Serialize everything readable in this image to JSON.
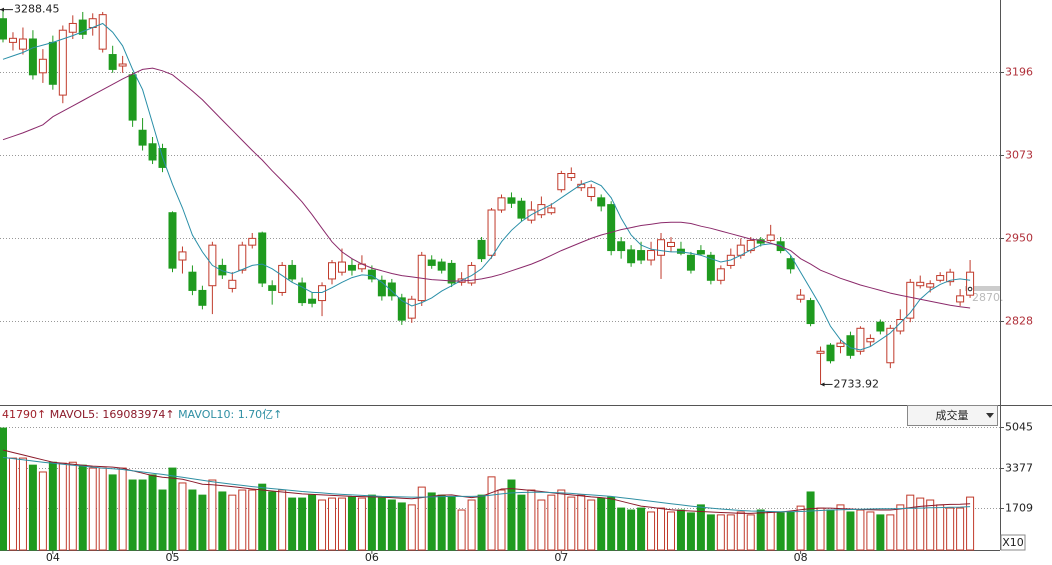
{
  "chart_data": [
    {
      "type": "candlestick",
      "categories": [
        null,
        null,
        null,
        null,
        null,
        "04",
        null,
        null,
        null,
        null,
        null,
        null,
        null,
        null,
        null,
        null,
        null,
        "05",
        null,
        null,
        null,
        null,
        null,
        null,
        null,
        null,
        null,
        null,
        null,
        null,
        null,
        null,
        null,
        null,
        null,
        null,
        null,
        "06",
        null,
        null,
        null,
        null,
        null,
        null,
        null,
        null,
        null,
        null,
        null,
        null,
        null,
        null,
        null,
        null,
        null,
        null,
        "07",
        null,
        null,
        null,
        null,
        null,
        null,
        null,
        null,
        null,
        null,
        null,
        null,
        null,
        null,
        null,
        null,
        null,
        null,
        null,
        null,
        null,
        null,
        null,
        "08",
        null,
        null,
        null,
        null,
        null,
        null,
        null,
        null,
        null,
        null,
        null,
        null,
        null,
        null,
        null,
        null,
        null
      ],
      "open": [
        3275,
        3240,
        3230,
        3245,
        3195,
        3240,
        3162,
        3255,
        3273,
        3262,
        3230,
        3222,
        3205,
        3192,
        3110,
        3090,
        3083,
        2988,
        2918,
        2900,
        2873,
        2880,
        2910,
        2876,
        2903,
        2940,
        2958,
        2880,
        2870,
        2910,
        2884,
        2860,
        2858,
        2890,
        2900,
        2910,
        2905,
        2903,
        2888,
        2884,
        2862,
        2832,
        2858,
        2918,
        2915,
        2913,
        2885,
        2884,
        2947,
        2925,
        2992,
        3010,
        3005,
        2977,
        2985,
        2988,
        3022,
        3040,
        3025,
        3012,
        3010,
        3000,
        2945,
        2933,
        2932,
        2918,
        2925,
        2938,
        2934,
        2925,
        2932,
        2925,
        2888,
        2910,
        2925,
        2932,
        2948,
        2947,
        2945,
        2920,
        2860,
        2858,
        2780,
        2792,
        2790,
        2806,
        2783,
        2797,
        2826,
        2766,
        2813,
        2832,
        2880,
        2878,
        2888,
        2886,
        2856,
        2866
      ],
      "close": [
        3245,
        3246,
        3245,
        3192,
        3215,
        3178,
        3258,
        3268,
        3252,
        3275,
        3281,
        3200,
        3208,
        3125,
        3088,
        3066,
        3055,
        2906,
        2930,
        2873,
        2851,
        2940,
        2896,
        2888,
        2940,
        2950,
        2884,
        2873,
        2910,
        2890,
        2855,
        2854,
        2880,
        2914,
        2915,
        2903,
        2912,
        2890,
        2865,
        2865,
        2829,
        2860,
        2925,
        2910,
        2903,
        2884,
        2890,
        2910,
        2920,
        2992,
        3010,
        3002,
        2980,
        2992,
        3000,
        2995,
        3046,
        3046,
        3030,
        3025,
        2998,
        2932,
        2932,
        2914,
        2918,
        2932,
        2948,
        2944,
        2928,
        2903,
        2927,
        2888,
        2905,
        2925,
        2940,
        2947,
        2943,
        2955,
        2932,
        2905,
        2866,
        2824,
        2783,
        2769,
        2795,
        2777,
        2817,
        2802,
        2813,
        2817,
        2830,
        2885,
        2885,
        2883,
        2895,
        2900,
        2865,
        2900
      ],
      "high": [
        3288.45,
        3255,
        3262,
        3258,
        3230,
        3250,
        3265,
        3280,
        3285,
        3283,
        3285,
        3235,
        3220,
        3196,
        3128,
        3100,
        3090,
        2990,
        2938,
        2910,
        2880,
        2945,
        2920,
        2900,
        2945,
        2958,
        2960,
        2888,
        2915,
        2918,
        2892,
        2870,
        2885,
        2918,
        2935,
        2920,
        2925,
        2910,
        2895,
        2890,
        2868,
        2865,
        2930,
        2925,
        2920,
        2918,
        2900,
        2915,
        2952,
        2995,
        3015,
        3018,
        3010,
        3005,
        3012,
        3002,
        3050,
        3055,
        3036,
        3030,
        3015,
        3005,
        2952,
        2940,
        2945,
        2945,
        2958,
        2952,
        2945,
        2930,
        2940,
        2930,
        2910,
        2935,
        2950,
        2952,
        2952,
        2970,
        2952,
        2925,
        2875,
        2862,
        2790,
        2795,
        2800,
        2812,
        2820,
        2808,
        2830,
        2822,
        2845,
        2890,
        2895,
        2888,
        2900,
        2905,
        2875,
        2918
      ],
      "low": [
        3240,
        3228,
        3222,
        3185,
        3180,
        3170,
        3150,
        3245,
        3245,
        3250,
        3225,
        3195,
        3195,
        3115,
        3080,
        3060,
        3048,
        2900,
        2898,
        2866,
        2845,
        2838,
        2890,
        2870,
        2898,
        2935,
        2878,
        2852,
        2865,
        2886,
        2850,
        2848,
        2835,
        2882,
        2895,
        2895,
        2900,
        2885,
        2858,
        2858,
        2822,
        2825,
        2850,
        2905,
        2898,
        2878,
        2880,
        2880,
        2915,
        2920,
        2988,
        2995,
        2975,
        2972,
        2980,
        2985,
        3018,
        3035,
        3020,
        3005,
        2990,
        2925,
        2920,
        2908,
        2912,
        2910,
        2890,
        2930,
        2925,
        2898,
        2925,
        2882,
        2882,
        2905,
        2920,
        2928,
        2938,
        2945,
        2928,
        2898,
        2855,
        2820,
        2733.92,
        2765,
        2780,
        2772,
        2778,
        2790,
        2808,
        2758,
        2808,
        2826,
        2876,
        2870,
        2885,
        2880,
        2850,
        2862
      ],
      "up_color": "#c03a2b",
      "down_color": "#1f9a1f",
      "series": [
        {
          "color": "#2a8fa8",
          "values": [
            3215,
            3220,
            3225,
            3232,
            3236,
            3240,
            3245,
            3250,
            3256,
            3262,
            3268,
            3255,
            3235,
            3200,
            3170,
            3120,
            3070,
            3030,
            2995,
            2955,
            2930,
            2910,
            2902,
            2898,
            2904,
            2910,
            2912,
            2905,
            2895,
            2885,
            2878,
            2870,
            2870,
            2877,
            2885,
            2892,
            2896,
            2895,
            2885,
            2872,
            2858,
            2850,
            2855,
            2862,
            2872,
            2880,
            2888,
            2895,
            2905,
            2922,
            2945,
            2962,
            2975,
            2985,
            2993,
            3000,
            3010,
            3020,
            3030,
            3035,
            3028,
            3010,
            2980,
            2955,
            2940,
            2934,
            2932,
            2930,
            2930,
            2928,
            2925,
            2920,
            2915,
            2918,
            2925,
            2933,
            2940,
            2942,
            2940,
            2925,
            2900,
            2875,
            2850,
            2820,
            2800,
            2788,
            2785,
            2790,
            2800,
            2810,
            2825,
            2840,
            2860,
            2873,
            2882,
            2888,
            2890,
            2888
          ]
        },
        {
          "color": "#8b2a6b",
          "values": [
            3096,
            3101,
            3106,
            3112,
            3118,
            3130,
            3138,
            3146,
            3154,
            3162,
            3170,
            3178,
            3186,
            3193,
            3200,
            3202,
            3198,
            3192,
            3180,
            3168,
            3155,
            3140,
            3125,
            3110,
            3095,
            3080,
            3066,
            3050,
            3035,
            3020,
            3004,
            2985,
            2965,
            2945,
            2930,
            2920,
            2912,
            2906,
            2902,
            2898,
            2895,
            2893,
            2891,
            2889,
            2888,
            2887,
            2887,
            2888,
            2890,
            2893,
            2897,
            2902,
            2907,
            2912,
            2918,
            2925,
            2932,
            2938,
            2944,
            2950,
            2955,
            2959,
            2963,
            2966,
            2969,
            2971,
            2973,
            2974,
            2974,
            2972,
            2968,
            2965,
            2961,
            2957,
            2953,
            2949,
            2947,
            2943,
            2938,
            2932,
            2920,
            2912,
            2903,
            2897,
            2891,
            2886,
            2881,
            2877,
            2873,
            2869,
            2866,
            2863,
            2860,
            2857,
            2854,
            2851,
            2849,
            2847
          ]
        }
      ],
      "ylim": [
        2703.5,
        3302.7
      ],
      "yticks": [
        2828,
        2950,
        3073,
        3196
      ],
      "grid": true,
      "last_label": "2870."
    },
    {
      "type": "bar",
      "header_prefix": "41790↑",
      "values": [
        5000,
        3770,
        3770,
        3480,
        3200,
        3600,
        3560,
        3600,
        3480,
        3360,
        3360,
        3080,
        3360,
        2870,
        2870,
        3080,
        2460,
        3360,
        2750,
        2460,
        2250,
        2870,
        2380,
        2250,
        2460,
        2460,
        2700,
        2380,
        2460,
        2130,
        2130,
        2250,
        2050,
        2130,
        2130,
        2170,
        2130,
        2250,
        2130,
        2050,
        1930,
        1850,
        2580,
        2340,
        2250,
        2170,
        1640,
        2050,
        2250,
        3000,
        2460,
        2870,
        2250,
        2460,
        2050,
        2250,
        2460,
        2170,
        2250,
        2050,
        2130,
        2170,
        1720,
        1640,
        1720,
        1560,
        1720,
        1560,
        1640,
        1520,
        1850,
        1440,
        1440,
        1440,
        1560,
        1440,
        1640,
        1560,
        1520,
        1560,
        1800,
        2380,
        1720,
        1640,
        1850,
        1560,
        1640,
        1560,
        1440,
        1440,
        1850,
        2250,
        2130,
        2050,
        1850,
        1720,
        1720,
        2170
      ],
      "series": [
        {
          "label": "MAVOL5: 169083974↑",
          "color": "#8b1a2a",
          "values": [
            4100,
            4000,
            3900,
            3800,
            3700,
            3600,
            3560,
            3520,
            3480,
            3440,
            3420,
            3400,
            3350,
            3250,
            3150,
            3050,
            2980,
            2950,
            2900,
            2800,
            2700,
            2680,
            2640,
            2600,
            2550,
            2500,
            2460,
            2420,
            2380,
            2340,
            2300,
            2280,
            2260,
            2240,
            2220,
            2200,
            2190,
            2180,
            2170,
            2150,
            2120,
            2100,
            2150,
            2200,
            2250,
            2260,
            2200,
            2150,
            2200,
            2350,
            2500,
            2520,
            2480,
            2440,
            2400,
            2350,
            2300,
            2260,
            2220,
            2180,
            2150,
            2100,
            2000,
            1900,
            1800,
            1750,
            1700,
            1650,
            1620,
            1600,
            1580,
            1560,
            1540,
            1520,
            1500,
            1500,
            1520,
            1540,
            1560,
            1600,
            1650,
            1700,
            1720,
            1720,
            1700,
            1680,
            1660,
            1650,
            1640,
            1640,
            1680,
            1740,
            1790,
            1820,
            1850,
            1870,
            1880,
            1900
          ]
        },
        {
          "label": "MAVOL10: 1.70亿↑",
          "color": "#2f8fa3",
          "values": [
            3800,
            3750,
            3700,
            3650,
            3600,
            3560,
            3520,
            3480,
            3440,
            3400,
            3360,
            3330,
            3300,
            3250,
            3200,
            3150,
            3100,
            3040,
            2980,
            2920,
            2860,
            2800,
            2750,
            2700,
            2650,
            2600,
            2560,
            2520,
            2480,
            2440,
            2400,
            2370,
            2340,
            2310,
            2280,
            2260,
            2240,
            2220,
            2200,
            2190,
            2180,
            2170,
            2170,
            2180,
            2190,
            2200,
            2200,
            2200,
            2210,
            2250,
            2300,
            2340,
            2360,
            2370,
            2370,
            2360,
            2340,
            2320,
            2290,
            2260,
            2230,
            2200,
            2150,
            2100,
            2050,
            2000,
            1950,
            1900,
            1850,
            1800,
            1760,
            1720,
            1680,
            1650,
            1620,
            1600,
            1590,
            1580,
            1570,
            1570,
            1580,
            1600,
            1620,
            1640,
            1650,
            1660,
            1670,
            1680,
            1690,
            1690,
            1700,
            1710,
            1720,
            1730,
            1740,
            1750,
            1760,
            1780
          ]
        }
      ],
      "ylim": [
        0,
        5045
      ],
      "yticks": [
        1709,
        3377,
        5045
      ],
      "grid": true,
      "panel_selector": "成交量",
      "unit_label": "X10"
    }
  ]
}
